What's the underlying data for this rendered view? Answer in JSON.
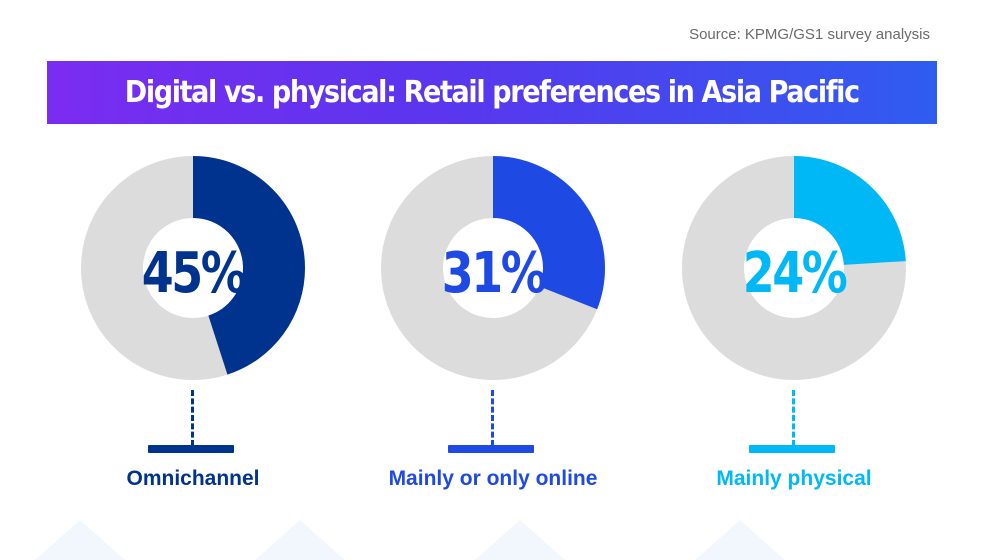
{
  "source": "Source: KPMG/GS1 survey analysis",
  "title": "Digital vs. physical: Retail preferences in Asia Pacific",
  "chart_data": {
    "type": "pie",
    "title": "Digital vs. physical: Retail preferences in Asia Pacific",
    "categories": [
      "Omnichannel",
      "Mainly or only online",
      "Mainly physical"
    ],
    "values": [
      45,
      31,
      24
    ],
    "value_labels": [
      "45%",
      "31%",
      "24%"
    ],
    "colors": [
      "#00338d",
      "#1e49e2",
      "#00b8f5"
    ],
    "track_color": "#dcdcdc",
    "style": "separate-donuts"
  }
}
